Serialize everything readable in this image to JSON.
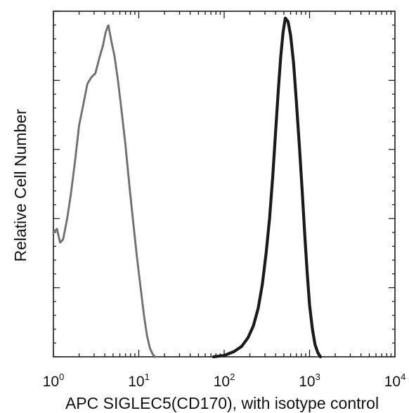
{
  "chart_data": {
    "type": "line",
    "title": "",
    "xlabel": "APC SIGLEC5(CD170), with isotype control",
    "ylabel": "Relative Cell Number",
    "x_scale": "log",
    "xlim": [
      1,
      10000
    ],
    "ylim": [
      0,
      1
    ],
    "x_ticks": [
      {
        "base": "10",
        "exp": "0",
        "value": 1
      },
      {
        "base": "10",
        "exp": "1",
        "value": 10
      },
      {
        "base": "10",
        "exp": "2",
        "value": 100
      },
      {
        "base": "10",
        "exp": "3",
        "value": 1000
      },
      {
        "base": "10",
        "exp": "4",
        "value": 10000
      }
    ],
    "grid": false,
    "legend": "none",
    "series": [
      {
        "style": "dotted",
        "color": "#6e6e6e",
        "points": [
          [
            1.0,
            0.36
          ],
          [
            1.1,
            0.37
          ],
          [
            1.2,
            0.33
          ],
          [
            1.3,
            0.34
          ],
          [
            1.45,
            0.4
          ],
          [
            1.6,
            0.47
          ],
          [
            1.8,
            0.57
          ],
          [
            2.0,
            0.67
          ],
          [
            2.2,
            0.72
          ],
          [
            2.5,
            0.79
          ],
          [
            2.8,
            0.81
          ],
          [
            3.1,
            0.82
          ],
          [
            3.5,
            0.87
          ],
          [
            3.8,
            0.9
          ],
          [
            4.1,
            0.94
          ],
          [
            4.4,
            0.96
          ],
          [
            4.8,
            0.91
          ],
          [
            5.2,
            0.87
          ],
          [
            5.7,
            0.8
          ],
          [
            6.3,
            0.71
          ],
          [
            7.0,
            0.61
          ],
          [
            7.8,
            0.49
          ],
          [
            8.6,
            0.39
          ],
          [
            9.5,
            0.29
          ],
          [
            10.5,
            0.2
          ],
          [
            11.5,
            0.12
          ],
          [
            12.5,
            0.06
          ],
          [
            13.5,
            0.025
          ],
          [
            14.5,
            0.008
          ],
          [
            15.5,
            0.0
          ]
        ]
      },
      {
        "style": "solid",
        "color": "#1a1a1a",
        "points": [
          [
            75,
            0.0
          ],
          [
            100,
            0.004
          ],
          [
            130,
            0.015
          ],
          [
            160,
            0.03
          ],
          [
            190,
            0.055
          ],
          [
            220,
            0.09
          ],
          [
            250,
            0.14
          ],
          [
            280,
            0.21
          ],
          [
            310,
            0.3
          ],
          [
            340,
            0.4
          ],
          [
            370,
            0.52
          ],
          [
            400,
            0.65
          ],
          [
            430,
            0.77
          ],
          [
            460,
            0.87
          ],
          [
            490,
            0.94
          ],
          [
            520,
            0.98
          ],
          [
            560,
            0.97
          ],
          [
            600,
            0.93
          ],
          [
            650,
            0.85
          ],
          [
            700,
            0.74
          ],
          [
            760,
            0.61
          ],
          [
            820,
            0.48
          ],
          [
            880,
            0.35
          ],
          [
            940,
            0.24
          ],
          [
            1000,
            0.15
          ],
          [
            1080,
            0.08
          ],
          [
            1160,
            0.035
          ],
          [
            1250,
            0.012
          ],
          [
            1340,
            0.0
          ]
        ]
      }
    ]
  }
}
